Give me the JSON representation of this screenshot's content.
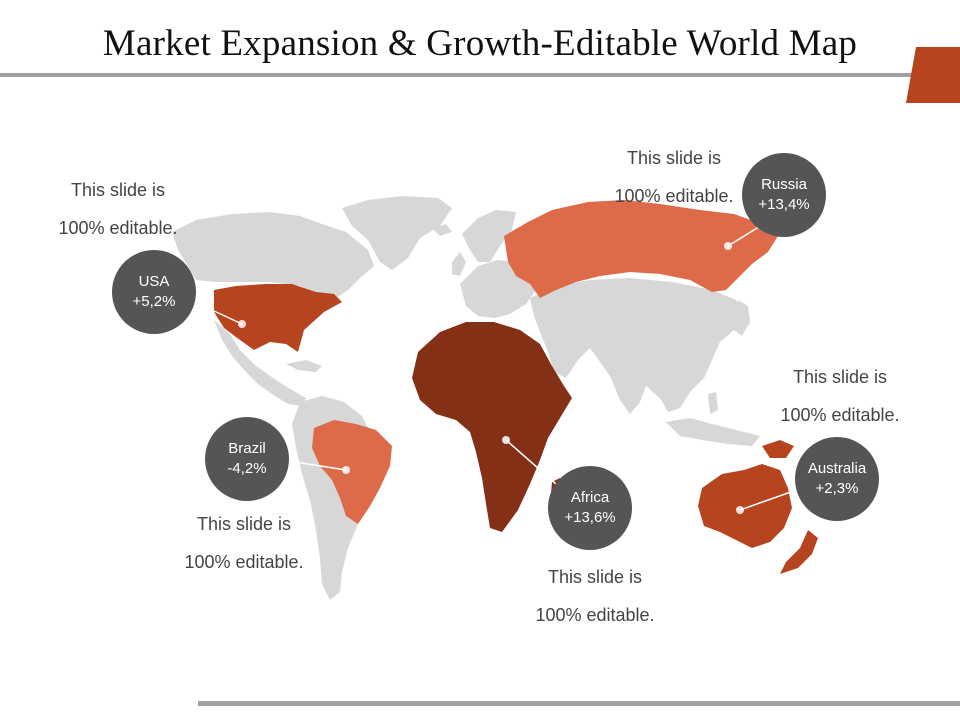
{
  "slide": {
    "title": "Market Expansion & Growth-Editable World Map"
  },
  "colors": {
    "land": "#d7d7d7",
    "accent": "#b5441f",
    "accent_light": "#dd6b4a",
    "africa": "#843016",
    "bubble": "#555555",
    "rule": "#a0a0a0"
  },
  "markers": [
    {
      "id": "usa",
      "name": "USA",
      "value": "+5,2%"
    },
    {
      "id": "russia",
      "name": "Russia",
      "value": "+13,4%"
    },
    {
      "id": "brazil",
      "name": "Brazil",
      "value": "-4,2%"
    },
    {
      "id": "africa",
      "name": "Africa",
      "value": "+13,6%"
    },
    {
      "id": "australia",
      "name": "Australia",
      "value": "+2,3%"
    }
  ],
  "captions": [
    {
      "line1": "This slide is",
      "line2": "100% editable."
    },
    {
      "line1": "This slide is",
      "line2": "100% editable."
    },
    {
      "line1": "This slide is",
      "line2": "100% editable."
    },
    {
      "line1": "This slide is",
      "line2": "100% editable."
    },
    {
      "line1": "This slide is",
      "line2": "100% editable."
    }
  ]
}
